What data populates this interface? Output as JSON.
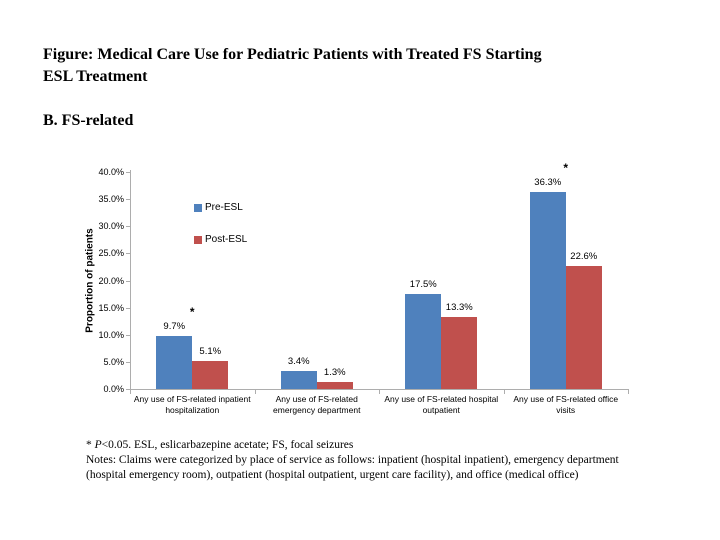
{
  "page": {
    "title_line1": "Figure: Medical Care Use for Pediatric Patients with Treated FS Starting",
    "title_line2": "ESL Treatment",
    "section_label": "B. FS-related"
  },
  "chart_data": {
    "type": "bar",
    "title": "",
    "ylabel": "Proportion of patients",
    "xlabel": "",
    "ylim": [
      0,
      40
    ],
    "ytick_step": 5,
    "ytick_suffix": "%",
    "grid": false,
    "legend_position": "inside-upper-left",
    "categories": [
      "Any use of FS-related inpatient hospitalization",
      "Any use of FS-related emergency department",
      "Any use of FS-related hospital outpatient",
      "Any use of FS-related office visits"
    ],
    "series": [
      {
        "name": "Pre-ESL",
        "color": "#4F81BD",
        "values": [
          9.7,
          3.4,
          17.5,
          36.3
        ]
      },
      {
        "name": "Post-ESL",
        "color": "#C0504D",
        "values": [
          5.1,
          1.3,
          13.3,
          22.6
        ]
      }
    ],
    "data_labels": [
      [
        "9.7%",
        "3.4%",
        "17.5%",
        "36.3%"
      ],
      [
        "5.1%",
        "1.3%",
        "13.3%",
        "22.6%"
      ]
    ],
    "significance_markers": [
      {
        "category_index": 0,
        "symbol": "*"
      },
      {
        "category_index": 3,
        "symbol": "*"
      }
    ]
  },
  "footnote": {
    "line1_star": "* ",
    "line1_p": "P",
    "line1_rest": "<0.05. ESL, eslicarbazepine acetate; FS, focal seizures",
    "line2": "Notes:  Claims were categorized by place of service as follows: inpatient (hospital inpatient), emergency department",
    "line3": "(hospital emergency room), outpatient (hospital outpatient, urgent care facility), and office (medical office)"
  },
  "colors": {
    "pre_esl": "#4F81BD",
    "post_esl": "#C0504D",
    "axis": "#ADADAD",
    "text": "#000000",
    "background": "#FFFFFF"
  }
}
